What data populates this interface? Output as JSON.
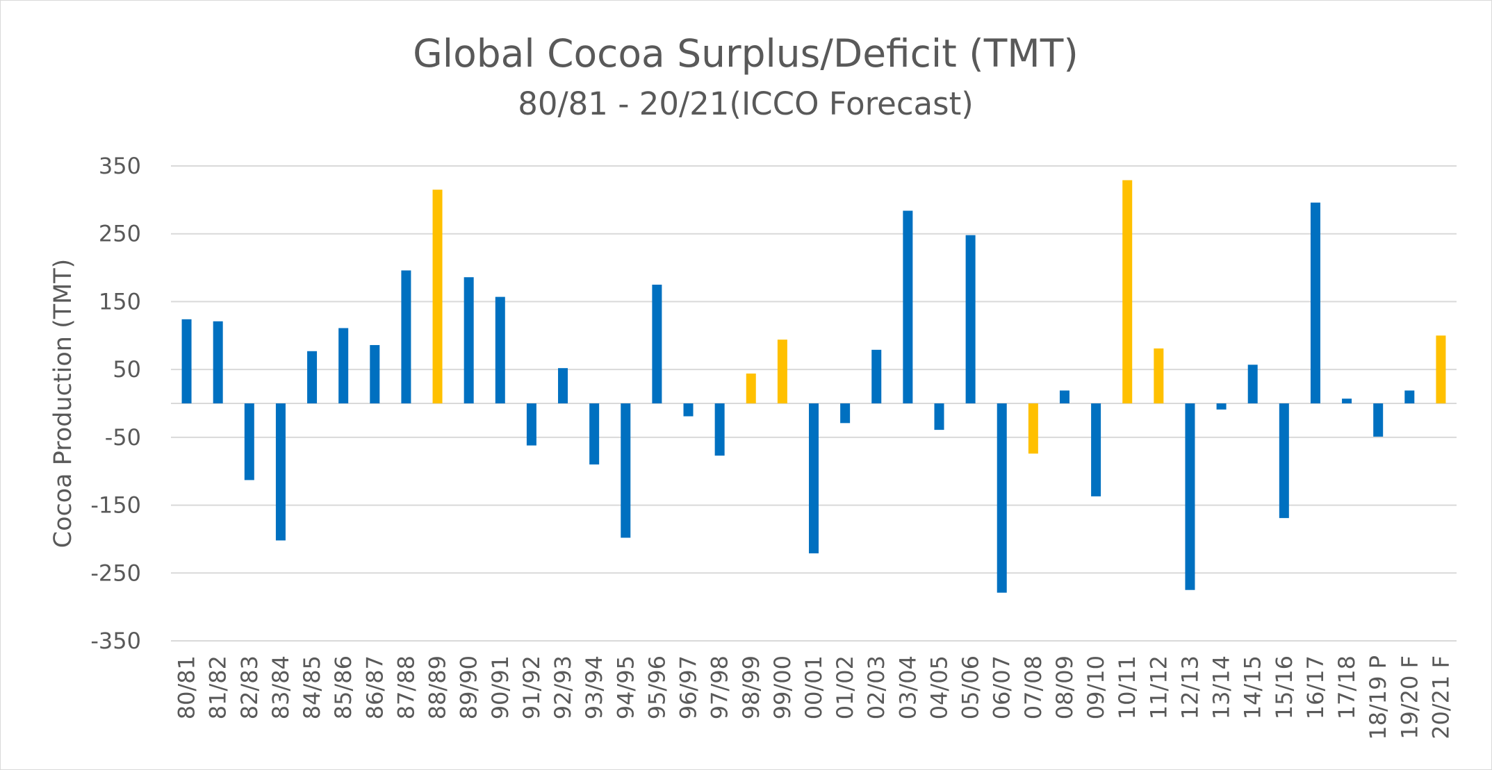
{
  "chart_data": {
    "type": "bar",
    "title": "Global Cocoa Surplus/Deficit (TMT)",
    "subtitle": "80/81 - 20/21(ICCO Forecast)",
    "xlabel": "",
    "ylabel": "Cocoa Production (TMT)",
    "ylim": [
      -350,
      350
    ],
    "yticks": [
      350,
      250,
      150,
      50,
      -50,
      -150,
      -250,
      -350
    ],
    "grid": true,
    "legend": "none",
    "colors": {
      "default": "#0070C0",
      "highlight": "#FFC000",
      "grid": "#D9D9D9",
      "text": "#595959"
    },
    "categories": [
      "80/81",
      "81/82",
      "82/83",
      "83/84",
      "84/85",
      "85/86",
      "86/87",
      "87/88",
      "88/89",
      "89/90",
      "90/91",
      "91/92",
      "92/93",
      "93/94",
      "94/95",
      "95/96",
      "96/97",
      "97/98",
      "98/99",
      "99/00",
      "00/01",
      "01/02",
      "02/03",
      "03/04",
      "04/05",
      "05/06",
      "06/07",
      "07/08",
      "08/09",
      "09/10",
      "10/11",
      "11/12",
      "12/13",
      "13/14",
      "14/15",
      "15/16",
      "16/17",
      "17/18",
      "18/19 P",
      "19/20 F",
      "20/21 F"
    ],
    "values": [
      124,
      121,
      -113,
      -202,
      77,
      111,
      86,
      196,
      315,
      186,
      157,
      -62,
      52,
      -90,
      -198,
      175,
      -19,
      -77,
      44,
      94,
      -221,
      -29,
      79,
      284,
      -39,
      248,
      -279,
      -74,
      19,
      -137,
      329,
      81,
      -275,
      -9,
      57,
      -169,
      296,
      7,
      -49,
      19,
      100
    ],
    "highlighted": [
      "88/89",
      "98/99",
      "99/00",
      "07/08",
      "10/11",
      "11/12",
      "20/21 F"
    ]
  }
}
